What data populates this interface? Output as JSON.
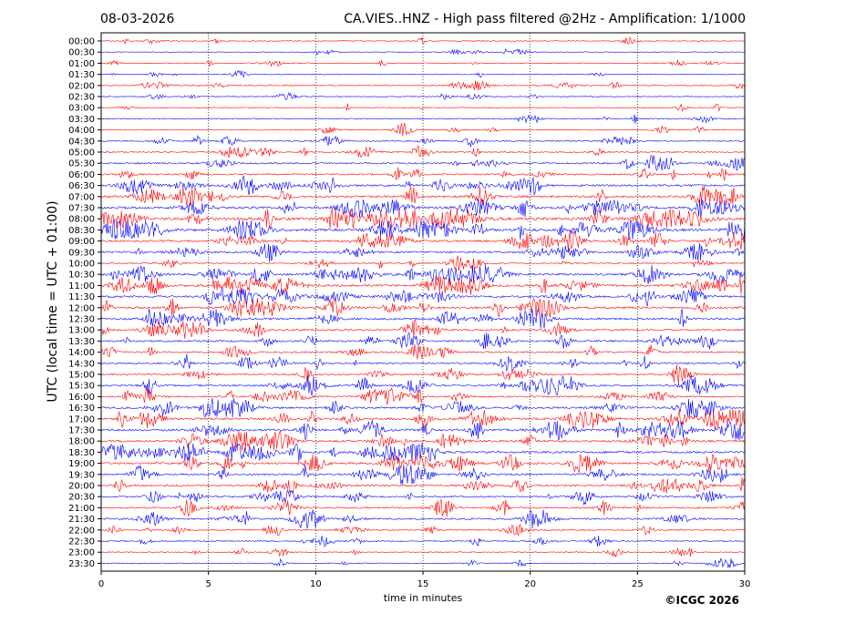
{
  "header": {
    "date": "08-03-2026",
    "title": "CA.VIES..HNZ - High pass filtered @2Hz - Amplification: 1/1000"
  },
  "footer": {
    "copyright": "©ICGC 2026"
  },
  "chart_data": {
    "type": "line",
    "title": "CA.VIES..HNZ - High pass filtered @2Hz - Amplification: 1/1000",
    "xlabel": "time in minutes",
    "ylabel": "UTC (local time = UTC + 01:00)",
    "xlim": [
      0,
      30
    ],
    "x_ticks": [
      "0",
      "5",
      "10",
      "15",
      "20",
      "25",
      "30"
    ],
    "row_labels": [
      "00:00",
      "00:30",
      "01:00",
      "01:30",
      "02:00",
      "02:30",
      "03:00",
      "03:30",
      "04:00",
      "04:30",
      "05:00",
      "05:30",
      "06:00",
      "06:30",
      "07:00",
      "07:30",
      "08:00",
      "08:30",
      "09:00",
      "09:30",
      "10:00",
      "10:30",
      "11:00",
      "11:30",
      "12:00",
      "12:30",
      "13:00",
      "13:30",
      "14:00",
      "14:30",
      "15:00",
      "15:30",
      "16:00",
      "16:30",
      "17:00",
      "17:30",
      "18:00",
      "18:30",
      "19:00",
      "19:30",
      "20:00",
      "20:30",
      "21:00",
      "21:30",
      "22:00",
      "22:30",
      "23:00",
      "23:30"
    ],
    "trace_colors": [
      "#ff0000",
      "#0000ff"
    ],
    "vertical_grid": true,
    "activity": [
      0.15,
      0.12,
      0.2,
      0.12,
      0.25,
      0.15,
      0.12,
      0.2,
      0.15,
      0.3,
      0.35,
      0.45,
      0.45,
      0.6,
      0.7,
      0.75,
      1.0,
      0.85,
      0.6,
      0.55,
      0.35,
      0.7,
      0.75,
      0.7,
      0.7,
      0.65,
      0.6,
      0.55,
      0.5,
      0.45,
      0.45,
      0.55,
      0.5,
      0.6,
      0.7,
      0.75,
      0.7,
      0.75,
      0.65,
      0.55,
      0.55,
      0.5,
      0.45,
      0.5,
      0.35,
      0.3,
      0.2,
      0.2
    ]
  }
}
